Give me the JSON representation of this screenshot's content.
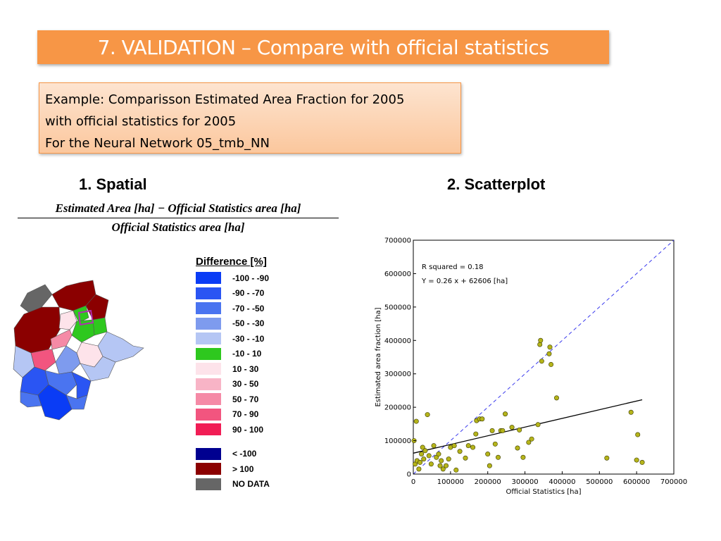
{
  "slide": {
    "title": "7. VALIDATION – Compare with official statistics",
    "example_lines": [
      "Example: Comparisson Estimated Area Fraction for 2005",
      "with official statistics for 2005",
      "For the Neural Network 05_tmb_NN"
    ],
    "section1": "1. Spatial",
    "section2": "2. Scatterplot",
    "formula_numerator": "Estimated Area [ha] − Official Statistics area [ha]",
    "formula_denominator": "Official Statistics area [ha]"
  },
  "legend": {
    "title": "Difference [%]",
    "items": [
      {
        "label": "-100 - -90",
        "color": "#0a3cf5"
      },
      {
        "label": "-90 - -70",
        "color": "#2a55f3"
      },
      {
        "label": "-70 - -50",
        "color": "#4a74f0"
      },
      {
        "label": "-50 - -30",
        "color": "#7e9bee"
      },
      {
        "label": "-30 - -10",
        "color": "#b5c6f4"
      },
      {
        "label": "-10 - 10",
        "color": "#2ec81e"
      },
      {
        "label": "10 - 30",
        "color": "#fde3ea"
      },
      {
        "label": "30 - 50",
        "color": "#f8b4c6"
      },
      {
        "label": "50 - 70",
        "color": "#f58aa6"
      },
      {
        "label": "70 - 90",
        "color": "#f2557f"
      },
      {
        "label": "90 - 100",
        "color": "#f11d55"
      }
    ],
    "extra_items": [
      {
        "label": "< -100",
        "color": "#000090"
      },
      {
        "label": "> 100",
        "color": "#8b0000"
      },
      {
        "label": "NO DATA",
        "color": "#666666"
      }
    ]
  },
  "chart_data": {
    "type": "scatter",
    "xlabel": "Official Statistics [ha]",
    "ylabel": "Estimated area fraction [ha]",
    "xlim": [
      0,
      700000
    ],
    "ylim": [
      0,
      700000
    ],
    "xticks": [
      0,
      100000,
      200000,
      300000,
      400000,
      500000,
      600000,
      700000
    ],
    "yticks": [
      0,
      100000,
      200000,
      300000,
      400000,
      500000,
      600000,
      700000
    ],
    "annotations": [
      "R squared = 0.18",
      "Y = 0.26 x + 62606 [ha]"
    ],
    "regression": {
      "slope": 0.26,
      "intercept": 62606,
      "x_range": [
        0,
        615000
      ]
    },
    "identity_line": true,
    "grid": false,
    "point_color": "#b5b41a",
    "points": [
      [
        2000,
        100000
      ],
      [
        8000,
        158000
      ],
      [
        5000,
        30000
      ],
      [
        10000,
        40000
      ],
      [
        15000,
        15000
      ],
      [
        18000,
        35000
      ],
      [
        22000,
        60000
      ],
      [
        25000,
        80000
      ],
      [
        28000,
        45000
      ],
      [
        32000,
        70000
      ],
      [
        38000,
        178000
      ],
      [
        42000,
        55000
      ],
      [
        48000,
        30000
      ],
      [
        55000,
        85000
      ],
      [
        62000,
        50000
      ],
      [
        68000,
        60000
      ],
      [
        72000,
        25000
      ],
      [
        75000,
        40000
      ],
      [
        80000,
        15000
      ],
      [
        88000,
        25000
      ],
      [
        95000,
        45000
      ],
      [
        100000,
        80000
      ],
      [
        110000,
        85000
      ],
      [
        115000,
        12000
      ],
      [
        125000,
        68000
      ],
      [
        140000,
        48000
      ],
      [
        148000,
        85000
      ],
      [
        160000,
        80000
      ],
      [
        168000,
        120000
      ],
      [
        170000,
        160000
      ],
      [
        178000,
        165000
      ],
      [
        185000,
        165000
      ],
      [
        200000,
        60000
      ],
      [
        205000,
        25000
      ],
      [
        212000,
        130000
      ],
      [
        220000,
        90000
      ],
      [
        228000,
        50000
      ],
      [
        235000,
        130000
      ],
      [
        240000,
        130000
      ],
      [
        247000,
        180000
      ],
      [
        265000,
        140000
      ],
      [
        280000,
        78000
      ],
      [
        285000,
        132000
      ],
      [
        295000,
        50000
      ],
      [
        310000,
        95000
      ],
      [
        318000,
        105000
      ],
      [
        335000,
        148000
      ],
      [
        340000,
        388000
      ],
      [
        342000,
        400000
      ],
      [
        345000,
        338000
      ],
      [
        365000,
        360000
      ],
      [
        367000,
        380000
      ],
      [
        370000,
        328000
      ],
      [
        385000,
        228000
      ],
      [
        520000,
        48000
      ],
      [
        585000,
        185000
      ],
      [
        600000,
        42000
      ],
      [
        603000,
        118000
      ],
      [
        615000,
        35000
      ]
    ]
  }
}
